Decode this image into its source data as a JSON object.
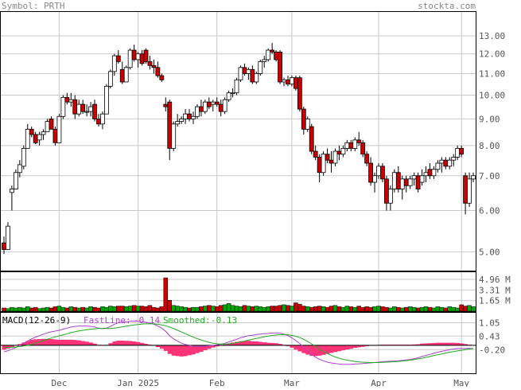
{
  "header": {
    "symbol_label": "Symbol: PRTH",
    "site_label": "stockta.com"
  },
  "colors": {
    "up": "#00aa00",
    "down": "#cc0000",
    "frame": "#000000",
    "grid": "#c8c8c8",
    "macd_hist": "#ff3377",
    "fast_line": "#aa44cc",
    "smoothed_line": "#22aa22",
    "zero_line": "#000000"
  },
  "chart_data": [
    {
      "type": "candlestick",
      "scale": "log",
      "ylim": [
        4.6,
        14.5
      ],
      "y_ticks": [
        "13.00",
        "12.00",
        "11.00",
        "10.00",
        "9.00",
        "8.00",
        "7.00",
        "6.00",
        "5.00"
      ],
      "y_tick_values": [
        13,
        12,
        11,
        10,
        9,
        8,
        7,
        6,
        5
      ],
      "x_ticks": [
        "Dec",
        "Jan 2025",
        "Feb",
        "Mar",
        "Apr",
        "May"
      ],
      "x_tick_index": [
        14,
        34,
        54,
        73,
        95,
        116
      ],
      "candles": [
        {
          "o": 5.2,
          "h": 5.35,
          "l": 4.95,
          "c": 5.05
        },
        {
          "o": 5.05,
          "h": 5.7,
          "l": 5.05,
          "c": 5.6
        },
        {
          "o": 6.5,
          "h": 6.7,
          "l": 6.0,
          "c": 6.6
        },
        {
          "o": 6.6,
          "h": 7.2,
          "l": 6.6,
          "c": 7.1
        },
        {
          "o": 7.1,
          "h": 7.5,
          "l": 6.95,
          "c": 7.35
        },
        {
          "o": 7.3,
          "h": 8.0,
          "l": 7.2,
          "c": 7.9
        },
        {
          "o": 7.9,
          "h": 8.8,
          "l": 7.9,
          "c": 8.6
        },
        {
          "o": 8.6,
          "h": 8.7,
          "l": 8.3,
          "c": 8.4
        },
        {
          "o": 8.4,
          "h": 8.5,
          "l": 8.05,
          "c": 8.1
        },
        {
          "o": 8.2,
          "h": 8.5,
          "l": 8.0,
          "c": 8.4
        },
        {
          "o": 8.4,
          "h": 8.6,
          "l": 8.2,
          "c": 8.5
        },
        {
          "o": 8.5,
          "h": 9.0,
          "l": 8.5,
          "c": 8.9
        },
        {
          "o": 9.0,
          "h": 9.1,
          "l": 8.6,
          "c": 8.6
        },
        {
          "o": 8.6,
          "h": 8.7,
          "l": 8.0,
          "c": 8.1
        },
        {
          "o": 8.1,
          "h": 9.2,
          "l": 8.1,
          "c": 9.1
        },
        {
          "o": 9.1,
          "h": 10.0,
          "l": 9.0,
          "c": 9.9
        },
        {
          "o": 9.9,
          "h": 10.1,
          "l": 9.6,
          "c": 9.7
        },
        {
          "o": 9.7,
          "h": 10.1,
          "l": 9.5,
          "c": 9.8
        },
        {
          "o": 9.8,
          "h": 10.0,
          "l": 9.0,
          "c": 9.2
        },
        {
          "o": 9.2,
          "h": 9.8,
          "l": 9.1,
          "c": 9.6
        },
        {
          "o": 9.6,
          "h": 9.8,
          "l": 9.2,
          "c": 9.3
        },
        {
          "o": 9.3,
          "h": 9.6,
          "l": 9.1,
          "c": 9.3
        },
        {
          "o": 9.3,
          "h": 9.7,
          "l": 9.1,
          "c": 9.5
        },
        {
          "o": 9.6,
          "h": 9.8,
          "l": 8.9,
          "c": 9.0
        },
        {
          "o": 9.0,
          "h": 9.2,
          "l": 8.7,
          "c": 8.8
        },
        {
          "o": 8.8,
          "h": 9.3,
          "l": 8.6,
          "c": 9.2
        },
        {
          "o": 9.2,
          "h": 10.5,
          "l": 9.2,
          "c": 10.4
        },
        {
          "o": 10.4,
          "h": 11.2,
          "l": 10.3,
          "c": 11.1
        },
        {
          "o": 11.1,
          "h": 12.0,
          "l": 10.9,
          "c": 11.9
        },
        {
          "o": 11.9,
          "h": 12.2,
          "l": 11.5,
          "c": 11.6
        },
        {
          "o": 11.2,
          "h": 11.6,
          "l": 10.5,
          "c": 10.6
        },
        {
          "o": 10.6,
          "h": 11.4,
          "l": 10.6,
          "c": 11.3
        },
        {
          "o": 11.3,
          "h": 12.3,
          "l": 11.2,
          "c": 12.2
        },
        {
          "o": 12.2,
          "h": 12.5,
          "l": 11.6,
          "c": 11.7
        },
        {
          "o": 11.7,
          "h": 12.1,
          "l": 11.3,
          "c": 12.0
        },
        {
          "o": 12.0,
          "h": 12.2,
          "l": 11.4,
          "c": 11.5
        },
        {
          "o": 12.2,
          "h": 12.3,
          "l": 11.5,
          "c": 11.6
        },
        {
          "o": 11.6,
          "h": 11.9,
          "l": 11.2,
          "c": 11.4
        },
        {
          "o": 11.4,
          "h": 11.7,
          "l": 11.0,
          "c": 11.3
        },
        {
          "o": 11.3,
          "h": 11.6,
          "l": 10.8,
          "c": 10.9
        },
        {
          "o": 10.9,
          "h": 11.0,
          "l": 10.6,
          "c": 10.7
        },
        {
          "o": 9.6,
          "h": 9.9,
          "l": 9.3,
          "c": 9.5
        },
        {
          "o": 9.7,
          "h": 9.8,
          "l": 7.5,
          "c": 7.9
        },
        {
          "o": 7.9,
          "h": 8.9,
          "l": 7.8,
          "c": 8.8
        },
        {
          "o": 8.8,
          "h": 9.2,
          "l": 8.7,
          "c": 8.9
        },
        {
          "o": 8.9,
          "h": 9.1,
          "l": 8.8,
          "c": 9.0
        },
        {
          "o": 9.0,
          "h": 9.4,
          "l": 8.8,
          "c": 9.2
        },
        {
          "o": 9.2,
          "h": 9.4,
          "l": 8.9,
          "c": 9.0
        },
        {
          "o": 9.0,
          "h": 9.3,
          "l": 8.8,
          "c": 9.1
        },
        {
          "o": 9.1,
          "h": 9.6,
          "l": 9.0,
          "c": 9.5
        },
        {
          "o": 9.5,
          "h": 9.8,
          "l": 9.1,
          "c": 9.3
        },
        {
          "o": 9.3,
          "h": 9.8,
          "l": 9.2,
          "c": 9.7
        },
        {
          "o": 9.7,
          "h": 9.9,
          "l": 9.4,
          "c": 9.5
        },
        {
          "o": 9.6,
          "h": 9.8,
          "l": 9.3,
          "c": 9.7
        },
        {
          "o": 9.7,
          "h": 9.9,
          "l": 9.5,
          "c": 9.6
        },
        {
          "o": 9.6,
          "h": 9.8,
          "l": 9.1,
          "c": 9.3
        },
        {
          "o": 9.3,
          "h": 9.9,
          "l": 9.2,
          "c": 9.8
        },
        {
          "o": 9.8,
          "h": 10.2,
          "l": 9.7,
          "c": 10.1
        },
        {
          "o": 10.1,
          "h": 10.3,
          "l": 9.9,
          "c": 10.1
        },
        {
          "o": 10.1,
          "h": 10.8,
          "l": 10.0,
          "c": 10.7
        },
        {
          "o": 10.7,
          "h": 11.4,
          "l": 10.6,
          "c": 11.3
        },
        {
          "o": 11.3,
          "h": 11.5,
          "l": 10.9,
          "c": 11.0
        },
        {
          "o": 11.0,
          "h": 11.3,
          "l": 10.7,
          "c": 11.2
        },
        {
          "o": 11.2,
          "h": 11.4,
          "l": 10.5,
          "c": 10.6
        },
        {
          "o": 10.6,
          "h": 11.1,
          "l": 10.5,
          "c": 11.0
        },
        {
          "o": 11.0,
          "h": 11.7,
          "l": 10.9,
          "c": 11.6
        },
        {
          "o": 11.6,
          "h": 11.9,
          "l": 11.3,
          "c": 11.7
        },
        {
          "o": 11.7,
          "h": 12.3,
          "l": 11.6,
          "c": 12.2
        },
        {
          "o": 12.2,
          "h": 12.6,
          "l": 12.0,
          "c": 12.1
        },
        {
          "o": 12.1,
          "h": 12.2,
          "l": 11.6,
          "c": 11.7
        },
        {
          "o": 12.1,
          "h": 12.2,
          "l": 10.5,
          "c": 10.6
        },
        {
          "o": 10.6,
          "h": 10.8,
          "l": 10.4,
          "c": 10.7
        },
        {
          "o": 10.7,
          "h": 10.9,
          "l": 10.4,
          "c": 10.5
        },
        {
          "o": 10.5,
          "h": 10.9,
          "l": 10.4,
          "c": 10.8
        },
        {
          "o": 10.8,
          "h": 10.9,
          "l": 10.2,
          "c": 10.3
        },
        {
          "o": 10.8,
          "h": 10.9,
          "l": 9.3,
          "c": 9.4
        },
        {
          "o": 9.4,
          "h": 9.5,
          "l": 8.4,
          "c": 8.6
        },
        {
          "o": 8.6,
          "h": 9.1,
          "l": 8.5,
          "c": 9.0
        },
        {
          "o": 8.7,
          "h": 8.8,
          "l": 7.7,
          "c": 7.8
        },
        {
          "o": 7.8,
          "h": 8.0,
          "l": 7.5,
          "c": 7.6
        },
        {
          "o": 7.6,
          "h": 7.7,
          "l": 6.8,
          "c": 7.1
        },
        {
          "o": 7.1,
          "h": 7.8,
          "l": 7.0,
          "c": 7.7
        },
        {
          "o": 7.7,
          "h": 7.9,
          "l": 7.4,
          "c": 7.5
        },
        {
          "o": 7.5,
          "h": 7.8,
          "l": 7.1,
          "c": 7.4
        },
        {
          "o": 7.4,
          "h": 7.9,
          "l": 7.3,
          "c": 7.8
        },
        {
          "o": 7.8,
          "h": 8.0,
          "l": 7.5,
          "c": 7.7
        },
        {
          "o": 7.7,
          "h": 8.0,
          "l": 7.6,
          "c": 7.9
        },
        {
          "o": 7.9,
          "h": 8.2,
          "l": 7.8,
          "c": 8.1
        },
        {
          "o": 8.1,
          "h": 8.2,
          "l": 7.8,
          "c": 7.9
        },
        {
          "o": 7.9,
          "h": 8.3,
          "l": 7.8,
          "c": 8.2
        },
        {
          "o": 8.2,
          "h": 8.5,
          "l": 8.0,
          "c": 8.1
        },
        {
          "o": 8.1,
          "h": 8.2,
          "l": 7.6,
          "c": 7.7
        },
        {
          "o": 7.7,
          "h": 7.8,
          "l": 7.3,
          "c": 7.4
        },
        {
          "o": 7.4,
          "h": 7.6,
          "l": 6.7,
          "c": 6.8
        },
        {
          "o": 6.8,
          "h": 7.1,
          "l": 6.5,
          "c": 7.0
        },
        {
          "o": 7.0,
          "h": 7.4,
          "l": 6.9,
          "c": 7.3
        },
        {
          "o": 7.3,
          "h": 7.4,
          "l": 6.8,
          "c": 6.9
        },
        {
          "o": 6.9,
          "h": 7.0,
          "l": 6.0,
          "c": 6.2
        },
        {
          "o": 6.2,
          "h": 6.7,
          "l": 6.0,
          "c": 6.6
        },
        {
          "o": 6.6,
          "h": 7.2,
          "l": 6.5,
          "c": 7.1
        },
        {
          "o": 7.1,
          "h": 7.3,
          "l": 6.5,
          "c": 6.6
        },
        {
          "o": 6.6,
          "h": 7.0,
          "l": 6.3,
          "c": 6.9
        },
        {
          "o": 6.9,
          "h": 7.0,
          "l": 6.5,
          "c": 6.7
        },
        {
          "o": 6.7,
          "h": 7.0,
          "l": 6.6,
          "c": 6.9
        },
        {
          "o": 6.9,
          "h": 7.1,
          "l": 6.7,
          "c": 7.0
        },
        {
          "o": 7.0,
          "h": 7.1,
          "l": 6.5,
          "c": 6.6
        },
        {
          "o": 6.8,
          "h": 7.2,
          "l": 6.7,
          "c": 7.0
        },
        {
          "o": 7.0,
          "h": 7.3,
          "l": 6.8,
          "c": 7.1
        },
        {
          "o": 7.2,
          "h": 7.4,
          "l": 6.9,
          "c": 7.0
        },
        {
          "o": 7.0,
          "h": 7.3,
          "l": 6.9,
          "c": 7.2
        },
        {
          "o": 7.2,
          "h": 7.5,
          "l": 7.1,
          "c": 7.4
        },
        {
          "o": 7.4,
          "h": 7.6,
          "l": 7.1,
          "c": 7.5
        },
        {
          "o": 7.5,
          "h": 7.6,
          "l": 7.2,
          "c": 7.3
        },
        {
          "o": 7.3,
          "h": 7.6,
          "l": 7.2,
          "c": 7.5
        },
        {
          "o": 7.5,
          "h": 7.7,
          "l": 7.3,
          "c": 7.6
        },
        {
          "o": 7.6,
          "h": 8.0,
          "l": 7.5,
          "c": 7.9
        },
        {
          "o": 7.9,
          "h": 8.0,
          "l": 7.6,
          "c": 7.7
        },
        {
          "o": 7.0,
          "h": 7.1,
          "l": 5.9,
          "c": 6.2
        },
        {
          "o": 6.2,
          "h": 7.1,
          "l": 6.1,
          "c": 6.9
        },
        {
          "o": 6.9,
          "h": 7.1,
          "l": 6.8,
          "c": 7.0
        }
      ]
    },
    {
      "type": "bar",
      "y_ticks": [
        "4.96 M",
        "3.31 M",
        "1.65 M"
      ],
      "y_tick_values": [
        4.96,
        3.31,
        1.65
      ],
      "ylim": [
        0,
        6.2
      ],
      "unit": "M",
      "values": [
        0.5,
        0.4,
        0.6,
        0.5,
        0.6,
        0.5,
        0.7,
        0.5,
        0.6,
        0.4,
        0.5,
        0.6,
        0.5,
        0.7,
        0.8,
        0.6,
        0.5,
        0.7,
        0.6,
        0.5,
        0.6,
        0.5,
        0.7,
        0.6,
        0.5,
        0.7,
        0.6,
        0.8,
        0.7,
        0.8,
        0.8,
        0.7,
        0.8,
        0.9,
        0.8,
        0.8,
        0.7,
        0.9,
        0.6,
        0.5,
        0.7,
        5.2,
        1.7,
        0.9,
        0.8,
        0.7,
        0.6,
        0.5,
        0.6,
        0.6,
        0.7,
        0.8,
        0.9,
        0.8,
        0.7,
        0.9,
        1.0,
        1.2,
        0.9,
        0.8,
        0.7,
        0.9,
        0.8,
        0.7,
        0.8,
        0.7,
        0.6,
        0.7,
        0.8,
        0.8,
        0.9,
        1.0,
        0.9,
        0.8,
        1.3,
        1.1,
        0.8,
        0.7,
        0.6,
        0.7,
        0.8,
        0.7,
        0.6,
        0.8,
        0.9,
        0.7,
        0.6,
        0.8,
        0.7,
        0.6,
        0.8,
        0.6,
        0.7,
        0.6,
        0.7,
        0.8,
        0.7,
        0.6,
        0.5,
        0.7,
        0.6,
        0.5,
        0.6,
        0.7,
        0.6,
        0.5,
        0.6,
        0.7,
        0.6,
        0.5,
        0.7,
        0.6,
        0.5,
        0.7,
        0.6,
        0.5,
        1.0,
        0.8,
        0.9,
        0.7
      ]
    },
    {
      "type": "line",
      "title": "MACD(12-26-9)",
      "legend": [
        {
          "name": "FastLine:",
          "value": "-0.14"
        },
        {
          "name": "Smoothed:",
          "value": "-0.13"
        }
      ],
      "y_ticks": [
        "1.05",
        "0.43",
        "-0.20"
      ],
      "y_tick_values": [
        1.05,
        0.43,
        -0.2
      ],
      "ylim": [
        -1.3,
        1.55
      ],
      "fast": [
        -0.3,
        -0.25,
        -0.18,
        -0.1,
        0.0,
        0.1,
        0.2,
        0.3,
        0.38,
        0.45,
        0.52,
        0.58,
        0.63,
        0.66,
        0.7,
        0.75,
        0.8,
        0.85,
        0.88,
        0.9,
        0.9,
        0.9,
        0.88,
        0.85,
        0.8,
        0.78,
        0.8,
        0.88,
        0.98,
        1.05,
        1.08,
        1.1,
        1.12,
        1.13,
        1.12,
        1.1,
        1.07,
        1.03,
        0.98,
        0.9,
        0.8,
        0.65,
        0.45,
        0.3,
        0.2,
        0.1,
        0.04,
        0.0,
        -0.04,
        -0.05,
        -0.05,
        -0.04,
        -0.02,
        0.0,
        0.02,
        0.05,
        0.1,
        0.16,
        0.22,
        0.28,
        0.35,
        0.4,
        0.45,
        0.47,
        0.5,
        0.52,
        0.54,
        0.55,
        0.57,
        0.58,
        0.57,
        0.52,
        0.45,
        0.35,
        0.22,
        0.08,
        -0.08,
        -0.25,
        -0.42,
        -0.55,
        -0.65,
        -0.72,
        -0.78,
        -0.82,
        -0.85,
        -0.87,
        -0.88,
        -0.88,
        -0.88,
        -0.87,
        -0.86,
        -0.85,
        -0.83,
        -0.82,
        -0.8,
        -0.78,
        -0.76,
        -0.75,
        -0.74,
        -0.73,
        -0.72,
        -0.7,
        -0.68,
        -0.66,
        -0.62,
        -0.58,
        -0.52,
        -0.47,
        -0.42,
        -0.37,
        -0.32,
        -0.28,
        -0.24,
        -0.2,
        -0.17,
        -0.15,
        -0.14,
        -0.14,
        -0.14,
        -0.14
      ],
      "smoothed": [
        -0.1,
        -0.1,
        -0.09,
        -0.08,
        -0.06,
        -0.03,
        0.0,
        0.04,
        0.1,
        0.16,
        0.22,
        0.28,
        0.34,
        0.39,
        0.44,
        0.49,
        0.54,
        0.59,
        0.63,
        0.67,
        0.7,
        0.73,
        0.75,
        0.77,
        0.78,
        0.78,
        0.78,
        0.78,
        0.8,
        0.83,
        0.86,
        0.89,
        0.92,
        0.95,
        0.97,
        0.99,
        1.0,
        1.0,
        1.0,
        0.98,
        0.95,
        0.91,
        0.85,
        0.78,
        0.7,
        0.62,
        0.54,
        0.46,
        0.38,
        0.31,
        0.25,
        0.19,
        0.14,
        0.1,
        0.07,
        0.06,
        0.06,
        0.07,
        0.09,
        0.12,
        0.16,
        0.2,
        0.24,
        0.28,
        0.32,
        0.36,
        0.4,
        0.43,
        0.46,
        0.48,
        0.5,
        0.5,
        0.49,
        0.46,
        0.42,
        0.36,
        0.28,
        0.18,
        0.07,
        -0.05,
        -0.17,
        -0.28,
        -0.38,
        -0.47,
        -0.54,
        -0.6,
        -0.65,
        -0.69,
        -0.72,
        -0.75,
        -0.77,
        -0.78,
        -0.79,
        -0.8,
        -0.8,
        -0.8,
        -0.79,
        -0.78,
        -0.77,
        -0.76,
        -0.75,
        -0.73,
        -0.71,
        -0.69,
        -0.66,
        -0.63,
        -0.6,
        -0.56,
        -0.52,
        -0.48,
        -0.44,
        -0.4,
        -0.36,
        -0.32,
        -0.29,
        -0.26,
        -0.23,
        -0.2,
        -0.17,
        -0.15
      ]
    }
  ]
}
